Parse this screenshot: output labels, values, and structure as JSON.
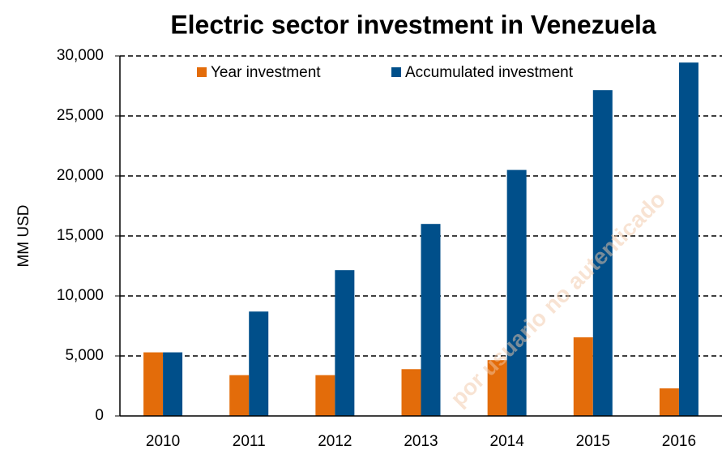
{
  "chart_data": {
    "type": "bar",
    "title": "Electric sector investment in Venezuela",
    "y_label": "MM USD",
    "watermark": "por usuario no autenticado",
    "categories": [
      "2010",
      "2011",
      "2012",
      "2013",
      "2014",
      "2015",
      "2016"
    ],
    "series": [
      {
        "name": "Year investment",
        "color": "#e36c0a",
        "values": [
          5300,
          3400,
          3400,
          3900,
          4650,
          6550,
          2300
        ]
      },
      {
        "name": "Accumulated investment",
        "color": "#004f8a",
        "values": [
          5300,
          8700,
          12150,
          16000,
          20500,
          27150,
          29450
        ]
      }
    ],
    "ylim": [
      0,
      30000
    ],
    "yticks": [
      0,
      {
        "value": 5000,
        "label": "5,000"
      },
      {
        "value": 10000,
        "label": "10,000"
      },
      {
        "value": 15000,
        "label": "15,000"
      },
      {
        "value": 20000,
        "label": "20,000"
      },
      {
        "value": 25000,
        "label": "25,000"
      },
      {
        "value": 30000,
        "label": "30,000"
      }
    ],
    "grid": true,
    "legend": "top"
  }
}
